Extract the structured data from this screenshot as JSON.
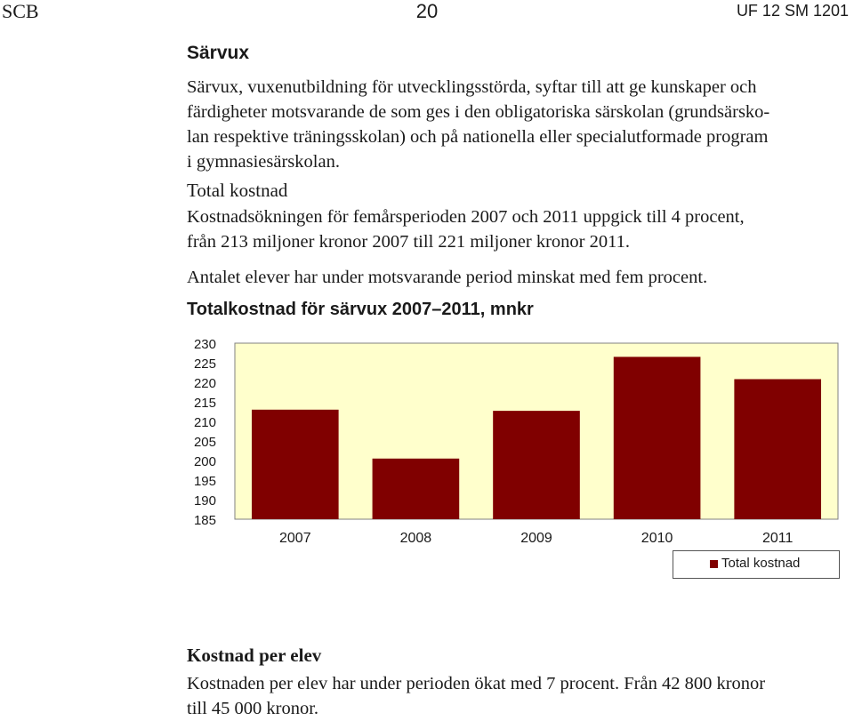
{
  "header": {
    "left": "SCB",
    "page_number": "20",
    "right": "UF 12 SM 1201"
  },
  "section_title": "Särvux",
  "intro_lines": [
    "Särvux, vuxenutbildning för utvecklingsstörda, syftar till att ge kunskaper och",
    "färdigheter motsvarande de som ges i den obligatoriska särskolan (grundsärsko-",
    "lan respektive träningsskolan) och på nationella eller specialutformade program",
    "i gymnasiesärskolan."
  ],
  "total_heading": "Total kostnad",
  "total_lines": [
    "Kostnadsökningen för femårsperioden 2007 och 2011 uppgick till 4 procent,",
    "från 213 miljoner kronor 2007 till 221 miljoner kronor 2011."
  ],
  "students_line": "Antalet elever har under motsvarande period minskat med fem procent.",
  "chart_data": {
    "type": "bar",
    "title": "Totalkostnad för särvux 2007–2011, mnkr",
    "categories": [
      "2007",
      "2008",
      "2009",
      "2010",
      "2011"
    ],
    "series": [
      {
        "name": "Total kostnad",
        "values": [
          213,
          200.5,
          212.7,
          226.5,
          220.8
        ],
        "color": "#800000"
      }
    ],
    "ylim": [
      185,
      230
    ],
    "yticks": [
      230,
      225,
      220,
      215,
      210,
      205,
      200,
      195,
      190,
      185
    ],
    "plot_background": "#ffffcc",
    "legend_position": "bottom-right",
    "grid": false
  },
  "per_student_heading": "Kostnad per elev",
  "per_student_lines": [
    "Kostnaden per elev har under perioden ökat med 7 procent. Från 42 800 kronor",
    "till 45 000 kronor."
  ]
}
